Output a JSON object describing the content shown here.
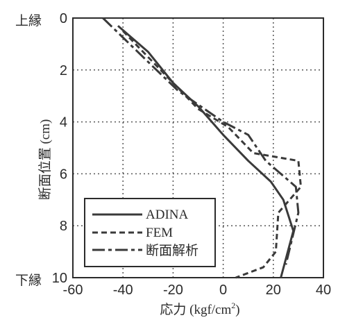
{
  "chart_data": {
    "type": "line",
    "title": "",
    "xlabel_main": "応力 (kgf/cm",
    "xlabel_sup": "2",
    "xlabel_close": ")",
    "ylabel": "断面位置 (cm)",
    "top_edge_label": "上縁",
    "bottom_edge_label": "下縁",
    "xlim": [
      -60,
      40
    ],
    "ylim": [
      0,
      10
    ],
    "y_inverted": true,
    "grid": true,
    "grid_style": "dotted",
    "xticks": [
      "-60",
      "-40",
      "-20",
      "0",
      "20",
      "40"
    ],
    "yticks": [
      "0",
      "2",
      "4",
      "6",
      "8",
      "10"
    ],
    "xtick_values": [
      -60,
      -40,
      -20,
      0,
      20,
      40
    ],
    "ytick_values": [
      0,
      2,
      4,
      6,
      8,
      10
    ],
    "legend_position": "bottom-left",
    "series": [
      {
        "name": "ADINA",
        "style": "solid",
        "color": "#3a3a3a",
        "x": [
          -42,
          -30,
          -20,
          -10,
          0,
          10,
          19,
          24,
          28,
          23
        ],
        "y": [
          0.3,
          1.3,
          2.5,
          3.4,
          4.5,
          5.5,
          6.3,
          7.0,
          8.2,
          10.0
        ]
      },
      {
        "name": "FEM",
        "style": "dashed",
        "color": "#3a3a3a",
        "x": [
          -40,
          -30,
          -20,
          -10,
          2,
          8,
          12,
          30,
          31,
          22,
          21,
          16,
          5
        ],
        "y": [
          0.5,
          1.5,
          2.5,
          3.5,
          4.2,
          4.8,
          5.2,
          5.5,
          6.5,
          7.5,
          9.0,
          9.6,
          10.0
        ]
      },
      {
        "name": "断面解析",
        "style": "dashdot",
        "color": "#3a3a3a",
        "x": [
          -48,
          -32,
          -18,
          0,
          10,
          17,
          29,
          30,
          25
        ],
        "y": [
          0,
          1.5,
          2.8,
          4.0,
          4.5,
          5.5,
          6.5,
          7.5,
          9.5
        ]
      }
    ]
  }
}
